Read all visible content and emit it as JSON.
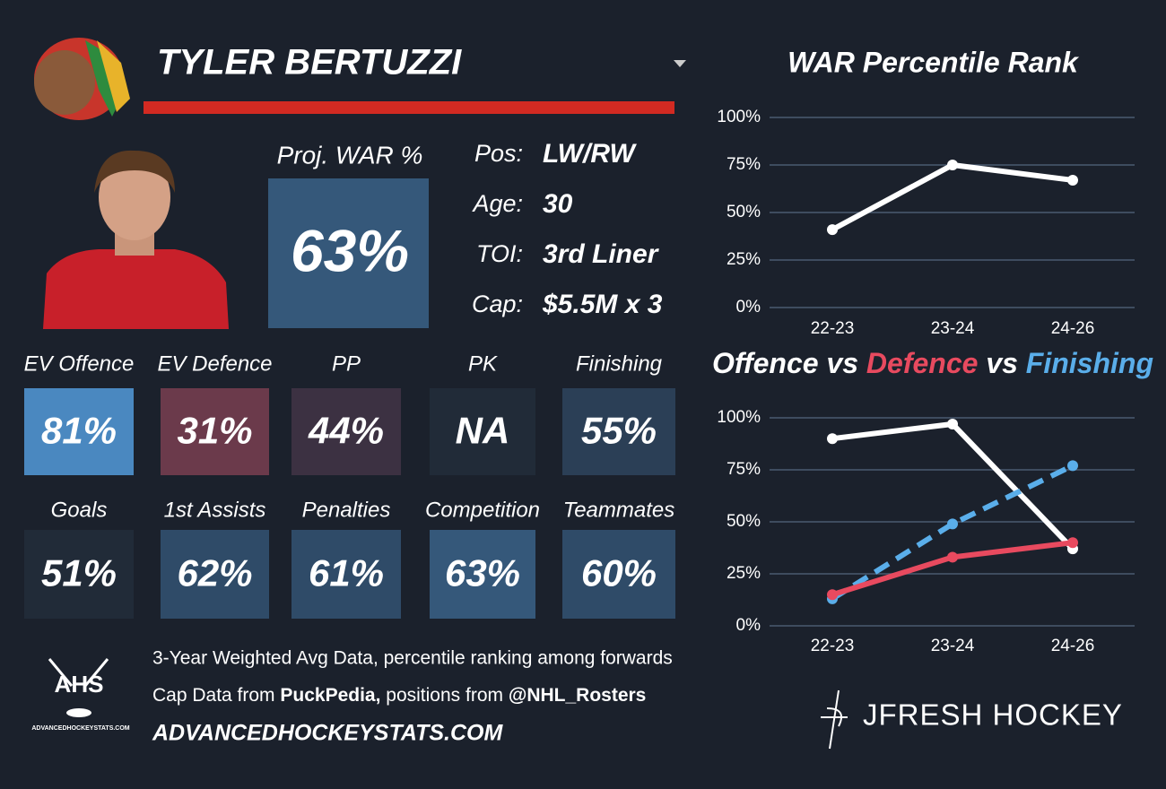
{
  "header": {
    "player": "TYLER BERTUZZI"
  },
  "projection": {
    "label": "Proj. WAR %",
    "value": "63%",
    "color": "#35587a"
  },
  "info": [
    {
      "label": "Pos:",
      "value": "LW/RW"
    },
    {
      "label": "Age:",
      "value": 30
    },
    {
      "label": "TOI:",
      "value": "3rd Liner"
    },
    {
      "label": "Cap:",
      "value": "$5.5M x 3"
    }
  ],
  "tiles": [
    {
      "label": "EV Offence",
      "value": "81%",
      "color": "#4a88c0"
    },
    {
      "label": "EV Defence",
      "value": "31%",
      "color": "#6b3a4b"
    },
    {
      "label": "PP",
      "value": "44%",
      "color": "#3c3142"
    },
    {
      "label": "PK",
      "value": "NA",
      "color": "#212b38"
    },
    {
      "label": "Finishing",
      "value": "55%",
      "color": "#2b3f56"
    },
    {
      "label": "Goals",
      "value": "51%",
      "color": "#212b38"
    },
    {
      "label": "1st Assists",
      "value": "62%",
      "color": "#2f4b68"
    },
    {
      "label": "Penalties",
      "value": "61%",
      "color": "#2f4b68"
    },
    {
      "label": "Competition",
      "value": "63%",
      "color": "#35587a"
    },
    {
      "label": "Teammates",
      "value": "60%",
      "color": "#2f4b68"
    }
  ],
  "footer": {
    "logo": "AHS",
    "logo_caption": "ADVANCEDHOCKEYSTATS.COM",
    "note": "3-Year Weighted Avg Data, percentile ranking among forwards",
    "credit_parts": [
      "Cap Data from ",
      "PuckPedia,",
      " positions from ",
      "@NHL_Rosters"
    ],
    "site": "ADVANCEDHOCKEYSTATS.COM",
    "brand": "JFRESH HOCKEY"
  },
  "chart_data": [
    {
      "type": "line",
      "title": "WAR Percentile Rank",
      "categories": [
        "22-23",
        "23-24",
        "24-26"
      ],
      "values": [
        41,
        75,
        67
      ],
      "color": "#ffffff",
      "ylim": [
        0,
        100
      ],
      "yticks": [
        {
          "value": 0,
          "label": "0%"
        },
        {
          "value": 25,
          "label": "25%"
        },
        {
          "value": 50,
          "label": "50%"
        },
        {
          "value": 75,
          "label": "75%"
        },
        {
          "value": 100,
          "label": "100%"
        }
      ],
      "grid": true
    },
    {
      "type": "line",
      "title_separator": "vs",
      "categories": [
        "22-23",
        "23-24",
        "24-26"
      ],
      "series": [
        {
          "name": "Offence",
          "color": "#ffffff",
          "values": [
            90,
            97,
            37
          ]
        },
        {
          "name": "Defence",
          "color": "#e84a5f",
          "values": [
            15,
            33,
            40
          ]
        },
        {
          "name": "Finishing",
          "color": "#5aaeea",
          "values": [
            13,
            49,
            77
          ],
          "dashed": true
        }
      ],
      "ylim": [
        0,
        100
      ],
      "yticks": [
        {
          "value": 0,
          "label": "0%"
        },
        {
          "value": 25,
          "label": "25%"
        },
        {
          "value": 50,
          "label": "50%"
        },
        {
          "value": 75,
          "label": "75%"
        },
        {
          "value": 100,
          "label": "100%"
        }
      ],
      "grid": true
    }
  ]
}
